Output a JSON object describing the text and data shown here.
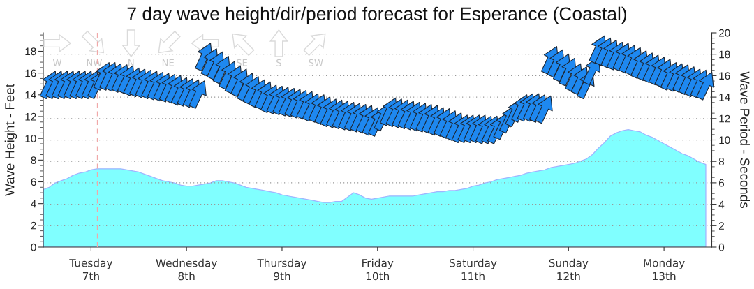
{
  "chart_data": {
    "type": "area",
    "title": "7 day wave height/dir/period forecast for Esperance (Coastal)",
    "ylabel": "Wave Height - Feet",
    "y2label": "Wave Period - Seconds",
    "categories": [
      null,
      null,
      null,
      null,
      null,
      null,
      null,
      null,
      "Tuesday\n7th",
      null,
      null,
      null,
      null,
      null,
      null,
      null,
      null,
      null,
      null,
      null,
      null,
      null,
      null,
      null,
      "Wednesday\n8th",
      null,
      null,
      null,
      null,
      null,
      null,
      null,
      null,
      null,
      null,
      null,
      null,
      null,
      null,
      null,
      "Thursday\n9th",
      null,
      null,
      null,
      null,
      null,
      null,
      null,
      null,
      null,
      null,
      null,
      null,
      null,
      null,
      null,
      "Friday\n10th",
      null,
      null,
      null,
      null,
      null,
      null,
      null,
      null,
      null,
      null,
      null,
      null,
      null,
      null,
      null,
      "Saturday\n11th",
      null,
      null,
      null,
      null,
      null,
      null,
      null,
      null,
      null,
      null,
      null,
      null,
      null,
      null,
      null,
      "Sunday\n12th",
      null,
      null,
      null,
      null,
      null,
      null,
      null,
      null,
      null,
      null,
      null,
      null,
      null,
      null,
      null,
      "Monday\n13th",
      null,
      null,
      null,
      null,
      null,
      null,
      null
    ],
    "ylim": [
      0,
      19.7
    ],
    "yticks": [
      0,
      {
        "value": 0.5,
        "label": null
      },
      {
        "value": 1,
        "label": null
      },
      {
        "value": 1.5,
        "label": null
      },
      2,
      {
        "value": 2.5,
        "label": null
      },
      {
        "value": 3,
        "label": null
      },
      {
        "value": 3.5,
        "label": null
      },
      4,
      {
        "value": 4.5,
        "label": null
      },
      {
        "value": 5,
        "label": null
      },
      {
        "value": 5.5,
        "label": null
      },
      6,
      {
        "value": 6.5,
        "label": null
      },
      {
        "value": 7,
        "label": null
      },
      {
        "value": 7.5,
        "label": null
      },
      8,
      {
        "value": 8.5,
        "label": null
      },
      {
        "value": 9,
        "label": null
      },
      {
        "value": 9.5,
        "label": null
      },
      10,
      {
        "value": 10.5,
        "label": null
      },
      {
        "value": 11,
        "label": null
      },
      {
        "value": 11.5,
        "label": null
      },
      12,
      {
        "value": 12.5,
        "label": null
      },
      {
        "value": 13,
        "label": null
      },
      {
        "value": 13.5,
        "label": null
      },
      14,
      {
        "value": 14.5,
        "label": null
      },
      {
        "value": 15,
        "label": null
      },
      {
        "value": 15.5,
        "label": null
      },
      16,
      {
        "value": 16.5,
        "label": null
      },
      {
        "value": 17,
        "label": null
      },
      {
        "value": 17.5,
        "label": null
      },
      18,
      {
        "value": 18.5,
        "label": null
      },
      {
        "value": 19,
        "label": null
      },
      {
        "value": 19.5,
        "label": null
      }
    ],
    "y2lim": [
      0,
      20
    ],
    "y2ticks": [
      0,
      {
        "value": 0.5,
        "label": null
      },
      {
        "value": 1,
        "label": null
      },
      {
        "value": 1.5,
        "label": null
      },
      2,
      {
        "value": 2.5,
        "label": null
      },
      {
        "value": 3,
        "label": null
      },
      {
        "value": 3.5,
        "label": null
      },
      4,
      {
        "value": 4.5,
        "label": null
      },
      {
        "value": 5,
        "label": null
      },
      {
        "value": 5.5,
        "label": null
      },
      6,
      {
        "value": 6.5,
        "label": null
      },
      {
        "value": 7,
        "label": null
      },
      {
        "value": 7.5,
        "label": null
      },
      8,
      {
        "value": 8.5,
        "label": null
      },
      {
        "value": 9,
        "label": null
      },
      {
        "value": 9.5,
        "label": null
      },
      10,
      {
        "value": 10.5,
        "label": null
      },
      {
        "value": 11,
        "label": null
      },
      {
        "value": 11.5,
        "label": null
      },
      12,
      {
        "value": 12.5,
        "label": null
      },
      {
        "value": 13,
        "label": null
      },
      {
        "value": 13.5,
        "label": null
      },
      14,
      {
        "value": 14.5,
        "label": null
      },
      {
        "value": 15,
        "label": null
      },
      {
        "value": 15.5,
        "label": null
      },
      16,
      {
        "value": 16.5,
        "label": null
      },
      {
        "value": 17,
        "label": null
      },
      {
        "value": 17.5,
        "label": null
      },
      18,
      {
        "value": 18.5,
        "label": null
      },
      {
        "value": 19,
        "label": null
      },
      {
        "value": 19.5,
        "label": null
      },
      20
    ],
    "grid": true,
    "series": [
      {
        "color": "#80ffff",
        "values": [
          5.3,
          5.5,
          5.9,
          6.1,
          6.3,
          6.6,
          6.8,
          6.9,
          7.1,
          7.2,
          7.2,
          7.2,
          7.2,
          7.2,
          7.1,
          7.0,
          6.9,
          6.7,
          6.5,
          6.3,
          6.1,
          6.0,
          5.9,
          5.7,
          5.6,
          5.6,
          5.7,
          5.8,
          5.9,
          6.1,
          6.1,
          6.0,
          5.9,
          5.7,
          5.5,
          5.4,
          5.3,
          5.2,
          5.1,
          5.0,
          4.8,
          4.7,
          4.6,
          4.5,
          4.4,
          4.3,
          4.2,
          4.1,
          4.1,
          4.2,
          4.2,
          4.6,
          5.0,
          4.8,
          4.5,
          4.4,
          4.5,
          4.6,
          4.7,
          4.7,
          4.7,
          4.7,
          4.7,
          4.8,
          4.9,
          5.0,
          5.1,
          5.1,
          5.2,
          5.2,
          5.3,
          5.4,
          5.6,
          5.7,
          5.9,
          6.0,
          6.2,
          6.3,
          6.4,
          6.5,
          6.6,
          6.8,
          6.9,
          7.0,
          7.1,
          7.3,
          7.4,
          7.5,
          7.6,
          7.7,
          7.9,
          8.1,
          8.5,
          9.1,
          9.6,
          10.2,
          10.5,
          10.7,
          10.8,
          10.7,
          10.6,
          10.3,
          10.1,
          9.8,
          9.5,
          9.2,
          8.9,
          8.6,
          8.4,
          8.1,
          7.8,
          7.6
        ]
      },
      {
        "type": "scatter",
        "axis": "y2",
        "color": "#1e88f0",
        "values": [
          null,
          15.2,
          15.2,
          15.2,
          15.2,
          15.2,
          15.2,
          15.2,
          15.2,
          15.2,
          16.0,
          16.0,
          15.9,
          15.8,
          15.7,
          15.5,
          15.4,
          15.3,
          15.2,
          15.1,
          15.0,
          14.9,
          14.8,
          14.6,
          14.5,
          14.4,
          14.3,
          17.8,
          17.3,
          17.0,
          16.6,
          16.1,
          15.7,
          15.4,
          15.0,
          14.7,
          14.4,
          14.2,
          13.9,
          13.8,
          13.7,
          13.6,
          13.5,
          13.4,
          13.3,
          13.1,
          13.0,
          12.8,
          12.6,
          12.5,
          12.4,
          12.3,
          12.2,
          12.1,
          12.0,
          11.8,
          11.7,
          12.2,
          12.7,
          12.6,
          12.5,
          12.4,
          12.3,
          12.2,
          12.1,
          12.0,
          11.8,
          11.7,
          11.5,
          11.3,
          11.1,
          11.1,
          11.1,
          11.1,
          11.0,
          11.0,
          11.0,
          11.4,
          12.0,
          12.6,
          13.0,
          13.1,
          13.1,
          13.0,
          12.9,
          17.5,
          17.2,
          16.8,
          16.4,
          15.9,
          15.6,
          15.2,
          16.5,
          18.5,
          18.3,
          18.1,
          17.9,
          17.8,
          17.6,
          17.4,
          17.1,
          16.9,
          16.7,
          16.5,
          16.3,
          16.0,
          15.9,
          15.8,
          15.6,
          15.4,
          15.3,
          15.1
        ]
      }
    ],
    "annotations": [
      "W",
      "NW",
      "N",
      "NE",
      "SE",
      "S",
      "SW"
    ]
  }
}
